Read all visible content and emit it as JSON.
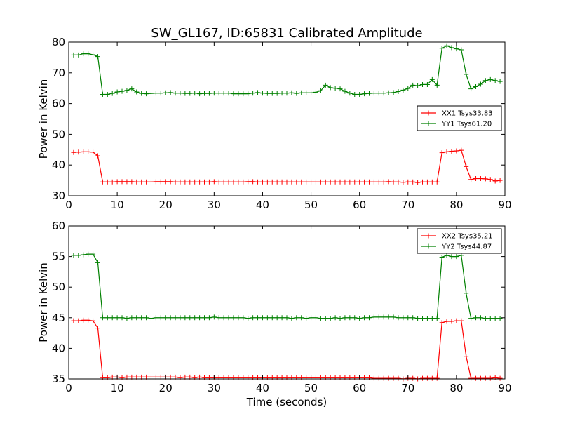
{
  "figure": {
    "title": "SW_GL167, ID:65831 Calibrated Amplitude",
    "xlabel": "Time (seconds)"
  },
  "chart_data": [
    {
      "type": "line",
      "title": "SW_GL167, ID:65831 Calibrated Amplitude",
      "xlabel": "",
      "ylabel": "Power in Kelvin",
      "xlim": [
        0,
        90
      ],
      "ylim": [
        30,
        80
      ],
      "xticks": [
        "0",
        "10",
        "20",
        "30",
        "40",
        "50",
        "60",
        "70",
        "80",
        "90"
      ],
      "yticks": [
        "30",
        "40",
        "50",
        "60",
        "70",
        "80"
      ],
      "grid": false,
      "legend_position": "center-right",
      "x": [
        1,
        2,
        3,
        4,
        5,
        6,
        7,
        8,
        9,
        10,
        11,
        12,
        13,
        14,
        15,
        16,
        17,
        18,
        19,
        20,
        21,
        22,
        23,
        24,
        25,
        26,
        27,
        28,
        29,
        30,
        31,
        32,
        33,
        34,
        35,
        36,
        37,
        38,
        39,
        40,
        41,
        42,
        43,
        44,
        45,
        46,
        47,
        48,
        49,
        50,
        51,
        52,
        53,
        54,
        55,
        56,
        57,
        58,
        59,
        60,
        61,
        62,
        63,
        64,
        65,
        66,
        67,
        68,
        69,
        70,
        71,
        72,
        73,
        74,
        75,
        76,
        77,
        78,
        79,
        80,
        81,
        82,
        83,
        84,
        85,
        86,
        87,
        88,
        89
      ],
      "series": [
        {
          "name": "XX1 Tsys33.83",
          "color": "#ff0000",
          "values": [
            44.1,
            44.2,
            44.3,
            44.3,
            44.2,
            43.0,
            34.5,
            34.5,
            34.5,
            34.6,
            34.6,
            34.6,
            34.6,
            34.5,
            34.5,
            34.5,
            34.5,
            34.6,
            34.6,
            34.6,
            34.6,
            34.5,
            34.5,
            34.5,
            34.5,
            34.5,
            34.5,
            34.5,
            34.5,
            34.6,
            34.5,
            34.5,
            34.5,
            34.5,
            34.5,
            34.5,
            34.6,
            34.6,
            34.5,
            34.5,
            34.5,
            34.5,
            34.5,
            34.5,
            34.5,
            34.5,
            34.5,
            34.5,
            34.5,
            34.5,
            34.5,
            34.5,
            34.5,
            34.5,
            34.5,
            34.5,
            34.5,
            34.5,
            34.5,
            34.5,
            34.5,
            34.5,
            34.5,
            34.5,
            34.5,
            34.6,
            34.5,
            34.5,
            34.4,
            34.5,
            34.5,
            34.3,
            34.5,
            34.5,
            34.5,
            34.5,
            44.0,
            44.3,
            44.5,
            44.6,
            44.8,
            39.5,
            35.3,
            35.6,
            35.6,
            35.5,
            35.3,
            34.8,
            35.0
          ]
        },
        {
          "name": "YY1 Tsys61.20",
          "color": "#008000",
          "values": [
            75.8,
            75.8,
            76.2,
            76.2,
            75.9,
            75.3,
            63.0,
            63.0,
            63.3,
            63.8,
            64.0,
            64.3,
            64.8,
            63.8,
            63.3,
            63.2,
            63.3,
            63.4,
            63.4,
            63.5,
            63.6,
            63.4,
            63.4,
            63.3,
            63.3,
            63.4,
            63.2,
            63.3,
            63.3,
            63.4,
            63.4,
            63.4,
            63.4,
            63.2,
            63.2,
            63.2,
            63.2,
            63.4,
            63.6,
            63.4,
            63.3,
            63.3,
            63.3,
            63.4,
            63.4,
            63.5,
            63.3,
            63.5,
            63.5,
            63.5,
            63.7,
            64.2,
            66.0,
            65.2,
            65.0,
            64.8,
            64.0,
            63.4,
            63.0,
            63.0,
            63.2,
            63.3,
            63.4,
            63.4,
            63.4,
            63.5,
            63.6,
            63.9,
            64.4,
            64.9,
            66.0,
            65.8,
            66.2,
            66.2,
            67.8,
            66.0,
            78.0,
            78.8,
            78.2,
            77.8,
            77.5,
            69.5,
            64.8,
            65.5,
            66.3,
            67.5,
            67.8,
            67.5,
            67.2
          ]
        }
      ]
    },
    {
      "type": "line",
      "title": "",
      "xlabel": "Time (seconds)",
      "ylabel": "Power in Kelvin",
      "xlim": [
        0,
        90
      ],
      "ylim": [
        35,
        60
      ],
      "xticks": [
        "0",
        "10",
        "20",
        "30",
        "40",
        "50",
        "60",
        "70",
        "80",
        "90"
      ],
      "yticks": [
        "35",
        "40",
        "45",
        "50",
        "55",
        "60"
      ],
      "grid": false,
      "legend_position": "top-right",
      "x": [
        1,
        2,
        3,
        4,
        5,
        6,
        7,
        8,
        9,
        10,
        11,
        12,
        13,
        14,
        15,
        16,
        17,
        18,
        19,
        20,
        21,
        22,
        23,
        24,
        25,
        26,
        27,
        28,
        29,
        30,
        31,
        32,
        33,
        34,
        35,
        36,
        37,
        38,
        39,
        40,
        41,
        42,
        43,
        44,
        45,
        46,
        47,
        48,
        49,
        50,
        51,
        52,
        53,
        54,
        55,
        56,
        57,
        58,
        59,
        60,
        61,
        62,
        63,
        64,
        65,
        66,
        67,
        68,
        69,
        70,
        71,
        72,
        73,
        74,
        75,
        76,
        77,
        78,
        79,
        80,
        81,
        82,
        83,
        84,
        85,
        86,
        87,
        88,
        89
      ],
      "series": [
        {
          "name": "XX2 Tsys35.21",
          "color": "#ff0000",
          "values": [
            44.5,
            44.5,
            44.6,
            44.6,
            44.5,
            43.3,
            35.2,
            35.2,
            35.3,
            35.3,
            35.2,
            35.3,
            35.3,
            35.3,
            35.3,
            35.3,
            35.3,
            35.3,
            35.3,
            35.3,
            35.3,
            35.3,
            35.2,
            35.3,
            35.3,
            35.2,
            35.3,
            35.2,
            35.2,
            35.2,
            35.2,
            35.2,
            35.2,
            35.2,
            35.2,
            35.2,
            35.2,
            35.2,
            35.2,
            35.2,
            35.2,
            35.2,
            35.2,
            35.2,
            35.2,
            35.2,
            35.2,
            35.2,
            35.2,
            35.2,
            35.2,
            35.2,
            35.2,
            35.2,
            35.2,
            35.2,
            35.2,
            35.2,
            35.2,
            35.2,
            35.2,
            35.2,
            35.1,
            35.1,
            35.1,
            35.1,
            35.1,
            35.1,
            35.0,
            35.1,
            35.1,
            35.0,
            35.1,
            35.1,
            35.1,
            35.1,
            44.2,
            44.4,
            44.4,
            44.5,
            44.5,
            38.7,
            35.1,
            35.1,
            35.1,
            35.1,
            35.1,
            35.2,
            35.1
          ]
        },
        {
          "name": "YY2 Tsys44.87",
          "color": "#008000",
          "values": [
            55.2,
            55.2,
            55.3,
            55.4,
            55.4,
            54.0,
            45.0,
            45.0,
            45.0,
            45.0,
            45.0,
            44.9,
            45.0,
            45.0,
            45.0,
            45.0,
            44.9,
            45.0,
            45.0,
            45.0,
            45.0,
            45.0,
            45.0,
            45.0,
            45.0,
            45.0,
            45.0,
            45.0,
            45.0,
            45.1,
            45.0,
            45.0,
            45.0,
            45.0,
            45.0,
            45.0,
            44.9,
            45.0,
            45.0,
            45.0,
            45.0,
            45.0,
            45.0,
            45.0,
            45.0,
            44.9,
            45.0,
            45.0,
            44.9,
            45.0,
            45.0,
            44.9,
            44.9,
            44.9,
            45.0,
            44.9,
            45.0,
            45.0,
            45.0,
            44.9,
            45.0,
            45.0,
            45.1,
            45.1,
            45.1,
            45.1,
            45.1,
            45.0,
            45.0,
            45.0,
            45.0,
            44.9,
            44.9,
            44.9,
            44.9,
            44.9,
            54.9,
            55.2,
            55.0,
            55.0,
            55.2,
            49.0,
            44.9,
            45.0,
            45.0,
            44.9,
            44.9,
            44.9,
            44.9
          ]
        }
      ]
    }
  ]
}
